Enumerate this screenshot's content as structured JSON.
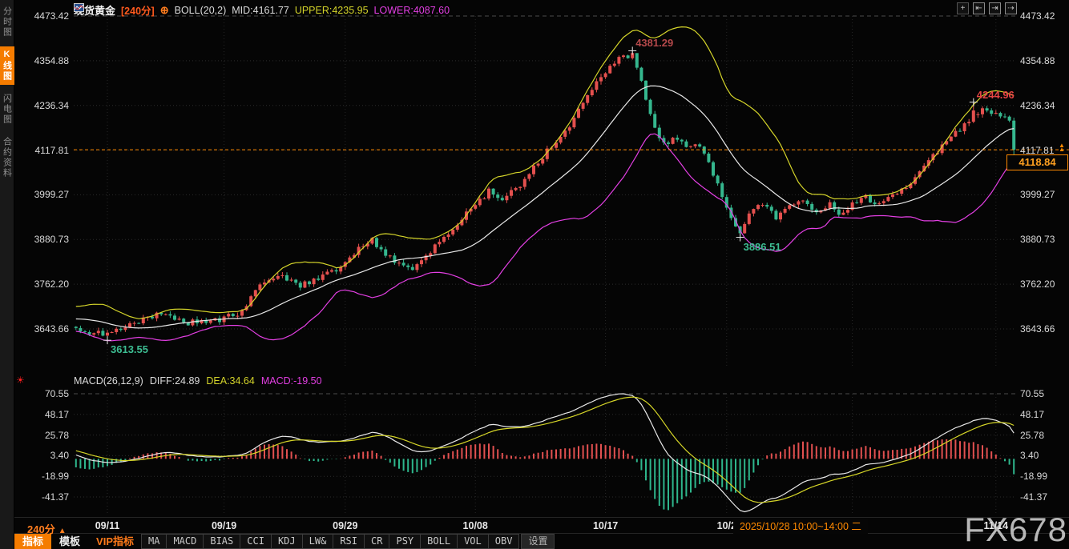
{
  "window": {
    "watermark": "FX678"
  },
  "sidebar": {
    "active_index": 1,
    "tabs": [
      {
        "label": "分时图"
      },
      {
        "label": "K线图"
      },
      {
        "label": "闪电图"
      },
      {
        "label": "合约资料"
      }
    ]
  },
  "header": {
    "symbol": "现货黄金",
    "period": "[240分]",
    "indicator": "BOLL(20,2)",
    "mid": "MID:4161.77",
    "upper": "UPPER:4235.95",
    "lower": "LOWER:4087.60"
  },
  "icons": {
    "sun": "☀",
    "target": "⊕",
    "price_marker": "▲"
  },
  "top_controls": {
    "items": [
      {
        "name": "crosshair",
        "glyph": "+"
      },
      {
        "name": "zoom-out",
        "glyph": "⇤"
      },
      {
        "name": "zoom-in",
        "glyph": "⇥"
      },
      {
        "name": "pan-right",
        "glyph": "⇢"
      }
    ]
  },
  "main_axis": {
    "ticks": [
      "4473.42",
      "4354.88",
      "4236.34",
      "4117.81",
      "3999.27",
      "3880.73",
      "3762.20",
      "3643.66"
    ]
  },
  "macd_axis": {
    "ticks": [
      "70.55",
      "48.17",
      "25.78",
      "3.40",
      "-18.99",
      "-41.37"
    ]
  },
  "macd_header": {
    "title": "MACD(26,12,9)",
    "diff": "DIFF:24.89",
    "dea": "DEA:34.64",
    "macd": "MACD:-19.50"
  },
  "current_price": {
    "label": "4118.84",
    "value": 4118.84
  },
  "x_axis": {
    "period_label": "240分",
    "period_arrow": "▲",
    "tooltip": "2025/10/28 10:00~14:00 二",
    "labels": [
      {
        "text": "09/11",
        "i": 32
      },
      {
        "text": "09/19",
        "i": 58
      },
      {
        "text": "09/29",
        "i": 85
      },
      {
        "text": "10/08",
        "i": 114
      },
      {
        "text": "10/17",
        "i": 143
      },
      {
        "text": "10/2",
        "i": 170
      },
      {
        "text": "11/14",
        "i": 230
      }
    ]
  },
  "toolbar": {
    "items": [
      {
        "label": "指标",
        "name": "indicators",
        "style": "active"
      },
      {
        "label": "模板",
        "name": "templates",
        "style": "plain"
      },
      {
        "label": "VIP指标",
        "name": "vip-indicators",
        "style": "vip"
      },
      {
        "label": "MA",
        "name": "ma",
        "style": "cell"
      },
      {
        "label": "MACD",
        "name": "macd",
        "style": "cell"
      },
      {
        "label": "BIAS",
        "name": "bias",
        "style": "cell"
      },
      {
        "label": "CCI",
        "name": "cci",
        "style": "cell"
      },
      {
        "label": "KDJ",
        "name": "kdj",
        "style": "cell"
      },
      {
        "label": "LW&",
        "name": "lwr",
        "style": "cell"
      },
      {
        "label": "RSI",
        "name": "rsi",
        "style": "cell"
      },
      {
        "label": "CR",
        "name": "cr",
        "style": "cell"
      },
      {
        "label": "PSY",
        "name": "psy",
        "style": "cell"
      },
      {
        "label": "BOLL",
        "name": "boll",
        "style": "cell"
      },
      {
        "label": "VOL",
        "name": "vol",
        "style": "cell"
      },
      {
        "label": "OBV",
        "name": "obv",
        "style": "cell"
      },
      {
        "label": "设置",
        "name": "settings",
        "style": "dim"
      }
    ]
  },
  "colors": {
    "accent_orange": "#f57c00",
    "price_line_orange": "#ff8a00",
    "boll_upper_yellow": "#d4d42a",
    "boll_mid_white": "#e8e8e8",
    "boll_lower_magenta": "#e33fe3",
    "candle_up_red": "#e4504e",
    "candle_down_teal": "#35b78e",
    "annotation_green": "#3dbd92",
    "annotation_red": "#e64545"
  },
  "chart_data": {
    "type": "candlestick",
    "title": "现货黄金 240分 K线 + BOLL(20,2) / MACD(26,12,9)",
    "price_axis_ticks": [
      4473.42,
      4354.88,
      4236.34,
      4117.81,
      3999.27,
      3880.73,
      3762.2,
      3643.66
    ],
    "macd_axis_ticks": [
      70.55,
      48.17,
      25.78,
      3.4,
      -18.99,
      -41.37
    ],
    "x_labels": [
      "09/11",
      "09/19",
      "09/29",
      "10/08",
      "10/17",
      "10/2",
      "11/14"
    ],
    "x_grid_indices": [
      32,
      58,
      85,
      114,
      143,
      170,
      198,
      230
    ],
    "last_price": 4118.84,
    "boll": {
      "period": 20,
      "width": 2,
      "mid": 4161.77,
      "upper": 4235.95,
      "lower": 4087.6
    },
    "macd": {
      "slow": 26,
      "fast": 12,
      "signal": 9,
      "diff": 24.89,
      "dea": 34.64,
      "bar": -19.5
    },
    "key_points": [
      {
        "label": "4381.29",
        "index": 149,
        "price": 4381.29,
        "kind": "high",
        "color": "#b5494b"
      },
      {
        "label": "4244.96",
        "index": 225,
        "price": 4244.96,
        "kind": "high",
        "color": "#e64545"
      },
      {
        "label": "3886.51",
        "index": 173,
        "price": 3886.51,
        "kind": "low",
        "color": "#3dbd92"
      },
      {
        "label": "3613.55",
        "index": 32,
        "price": 3613.55,
        "kind": "low",
        "color": "#3dbd92"
      }
    ],
    "candles_visible": 210,
    "preroll": 25,
    "price_path_anchors": [
      [
        0,
        3605
      ],
      [
        13,
        3695
      ],
      [
        25,
        3648
      ],
      [
        28,
        3636
      ],
      [
        32,
        3630
      ],
      [
        37,
        3658
      ],
      [
        43,
        3682
      ],
      [
        49,
        3660
      ],
      [
        55,
        3662
      ],
      [
        58,
        3672
      ],
      [
        62,
        3690
      ],
      [
        66,
        3755
      ],
      [
        71,
        3783
      ],
      [
        75,
        3760
      ],
      [
        80,
        3782
      ],
      [
        85,
        3815
      ],
      [
        88,
        3855
      ],
      [
        91,
        3878
      ],
      [
        95,
        3832
      ],
      [
        99,
        3800
      ],
      [
        102,
        3818
      ],
      [
        106,
        3875
      ],
      [
        110,
        3920
      ],
      [
        114,
        3975
      ],
      [
        117,
        4008
      ],
      [
        120,
        3990
      ],
      [
        124,
        4028
      ],
      [
        127,
        4070
      ],
      [
        131,
        4130
      ],
      [
        135,
        4185
      ],
      [
        138,
        4240
      ],
      [
        142,
        4315
      ],
      [
        146,
        4360
      ],
      [
        149,
        4368
      ],
      [
        151,
        4300
      ],
      [
        153,
        4210
      ],
      [
        156,
        4130
      ],
      [
        158,
        4150
      ],
      [
        161,
        4128
      ],
      [
        164,
        4135
      ],
      [
        166,
        4085
      ],
      [
        168,
        4025
      ],
      [
        170,
        3960
      ],
      [
        173,
        3905
      ],
      [
        175,
        3950
      ],
      [
        178,
        3975
      ],
      [
        181,
        3938
      ],
      [
        184,
        3965
      ],
      [
        187,
        3985
      ],
      [
        190,
        3955
      ],
      [
        193,
        3972
      ],
      [
        195,
        3945
      ],
      [
        198,
        3975
      ],
      [
        201,
        3998
      ],
      [
        203,
        3968
      ],
      [
        206,
        3988
      ],
      [
        209,
        4010
      ],
      [
        212,
        4045
      ],
      [
        215,
        4090
      ],
      [
        218,
        4125
      ],
      [
        221,
        4165
      ],
      [
        224,
        4195
      ],
      [
        227,
        4222
      ],
      [
        230,
        4210
      ],
      [
        233,
        4198
      ],
      [
        234,
        4118.84
      ]
    ]
  }
}
